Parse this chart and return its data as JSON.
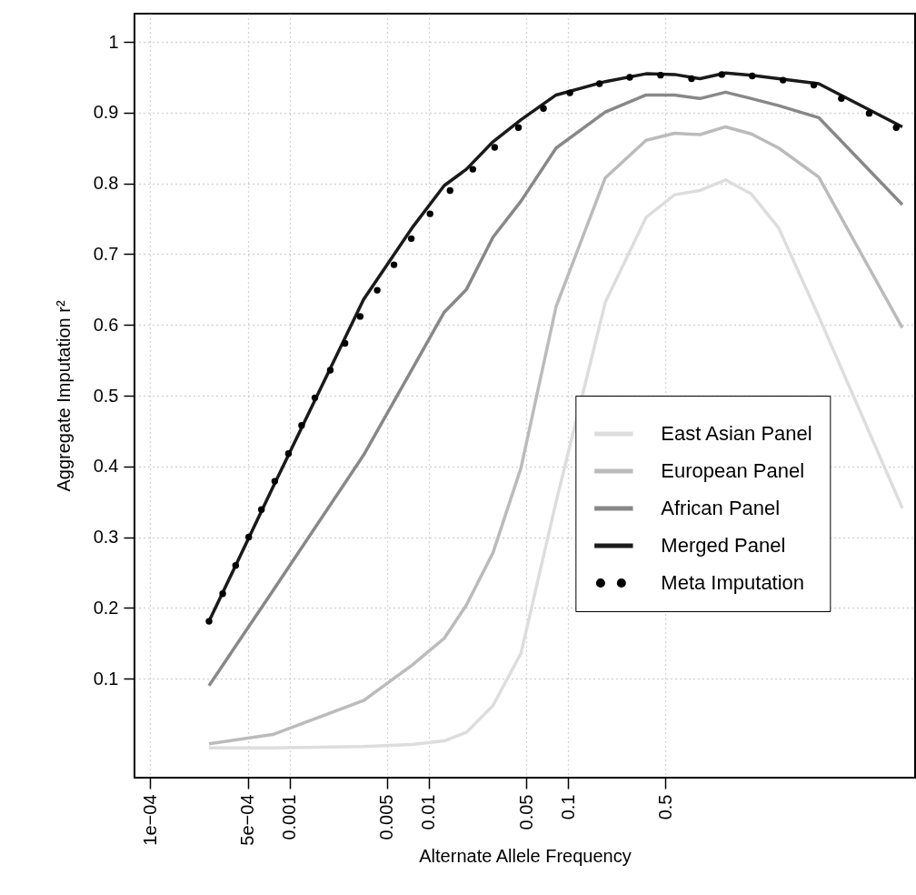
{
  "chart_data": {
    "type": "line",
    "xlabel": "Alternate Allele Frequency",
    "ylabel": "Aggregate Imputation r²",
    "log": "x",
    "grid": true,
    "legend": "right",
    "line_style": "solid",
    "xlim": [
      7.7e-05,
      31
    ],
    "ylim": [
      -0.04,
      1.04
    ],
    "xticks": [
      {
        "value": 0.0001,
        "label": "1e−04"
      },
      {
        "value": 0.0005,
        "label": "5e−04"
      },
      0.001,
      0.005,
      0.01,
      0.05,
      0.1,
      0.5
    ],
    "yticks": [
      0.1,
      0.2,
      0.3,
      0.4,
      0.5,
      0.6,
      0.7,
      0.8,
      0.9,
      1
    ],
    "x": [
      0.000264,
      0.000757,
      0.0034,
      0.00757,
      0.0129,
      0.0186,
      0.0289,
      0.0459,
      0.082,
      0.185,
      0.363,
      0.581,
      0.885,
      1.35,
      2.07,
      3.25,
      6.3,
      25.1
    ],
    "series": [
      {
        "name": "East Asian Panel",
        "color": "#dddddd",
        "values": [
          0.002,
          0.002,
          0.004,
          0.007,
          0.012,
          0.024,
          0.062,
          0.136,
          0.35,
          0.632,
          0.752,
          0.784,
          0.79,
          0.805,
          0.785,
          0.737,
          0.612,
          0.341
        ]
      },
      {
        "name": "European Panel",
        "color": "#bbbbbb",
        "values": [
          0.008,
          0.021,
          0.069,
          0.119,
          0.157,
          0.204,
          0.278,
          0.398,
          0.626,
          0.808,
          0.861,
          0.871,
          0.869,
          0.88,
          0.87,
          0.85,
          0.809,
          0.596
        ]
      },
      {
        "name": "African Panel",
        "color": "#888888",
        "values": [
          0.09,
          0.224,
          0.416,
          0.537,
          0.618,
          0.65,
          0.724,
          0.775,
          0.85,
          0.901,
          0.925,
          0.925,
          0.92,
          0.929,
          0.92,
          0.91,
          0.893,
          0.77
        ]
      },
      {
        "name": "Merged Panel",
        "color": "#1a1a1a",
        "values": [
          0.181,
          0.37,
          0.636,
          0.737,
          0.797,
          0.82,
          0.859,
          0.89,
          0.925,
          0.944,
          0.955,
          0.954,
          0.948,
          0.956,
          0.953,
          0.948,
          0.941,
          0.88
        ]
      },
      {
        "name": "Meta Imputation",
        "color": "#000000",
        "type": "scatter",
        "marker": "circle",
        "x": [
          0.000264,
          0.000331,
          0.00041,
          0.000509,
          0.000628,
          0.000783,
          0.000982,
          0.00122,
          0.00152,
          0.00196,
          0.0025,
          0.00321,
          0.00426,
          0.00562,
          0.00748,
          0.0102,
          0.0142,
          0.0207,
          0.0297,
          0.044,
          0.0665,
          0.103,
          0.168,
          0.277,
          0.461,
          0.769,
          1.27,
          2.1,
          3.49,
          5.81,
          9.16,
          14.5,
          22.7
        ],
        "values": [
          0.181,
          0.22,
          0.26,
          0.3,
          0.339,
          0.379,
          0.418,
          0.458,
          0.497,
          0.536,
          0.574,
          0.612,
          0.649,
          0.685,
          0.722,
          0.757,
          0.79,
          0.82,
          0.851,
          0.879,
          0.906,
          0.928,
          0.941,
          0.95,
          0.953,
          0.948,
          0.954,
          0.952,
          0.946,
          0.939,
          0.92,
          0.899,
          0.879
        ]
      }
    ]
  }
}
